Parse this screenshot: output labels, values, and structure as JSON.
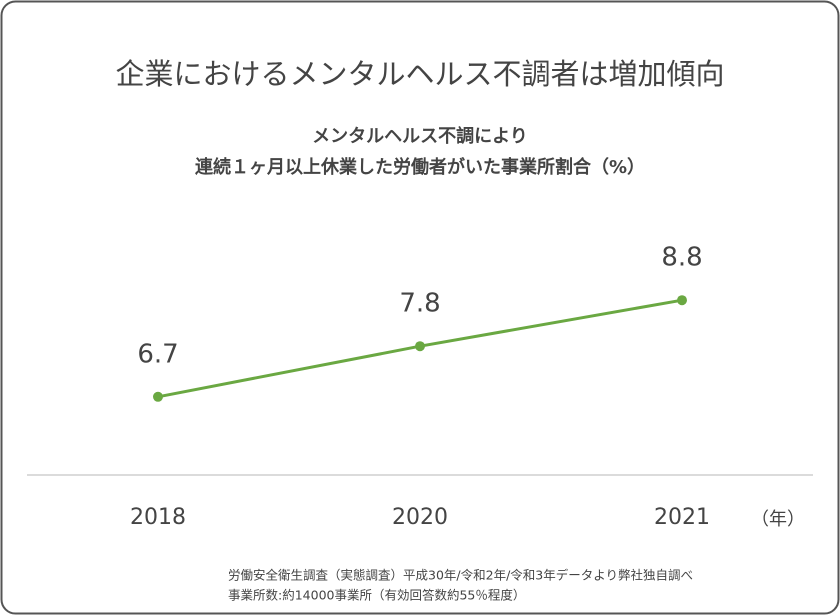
{
  "chart_data": {
    "type": "line",
    "title": "企業におけるメンタルヘルス不調者は増加傾向",
    "subtitle": [
      "メンタルヘルス不調により",
      "連続１ヶ月以上休業した労働者がいた事業所割合（%）"
    ],
    "x_unit": "（年）",
    "categories": [
      "2018",
      "2020",
      "2021"
    ],
    "values": [
      6.7,
      7.8,
      8.8
    ],
    "color": "#6aa842",
    "ylim": [
      5,
      11
    ],
    "notes": [
      "労働安全衛生調査（実態調査）平成30年/令和2年/令和3年データより弊社独自調べ",
      "事業所数:約14000事業所（有効回答数約55％程度）"
    ]
  }
}
